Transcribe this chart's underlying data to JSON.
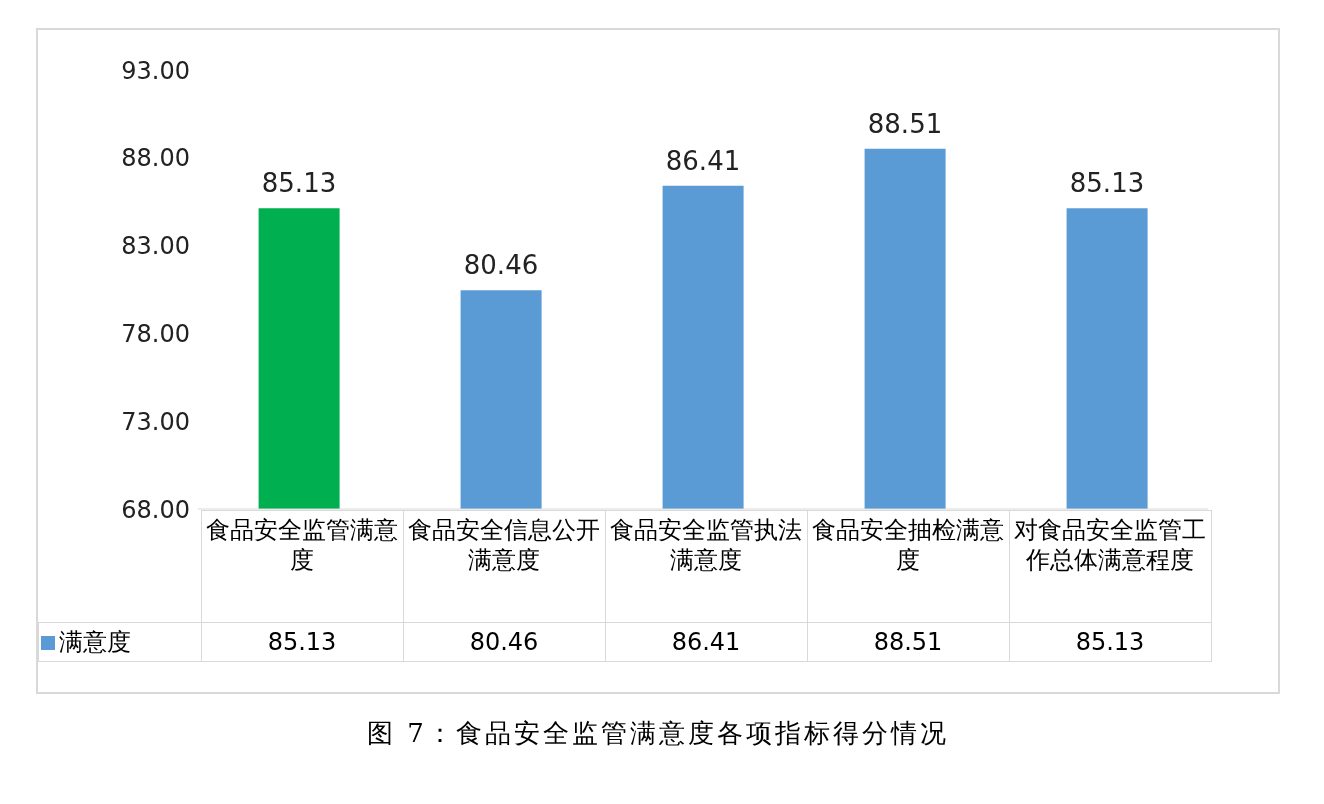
{
  "chart_data": {
    "type": "bar",
    "title": "图 7：食品安全监管满意度各项指标得分情况",
    "categories": [
      "食品安全监管满意度",
      "食品安全信息公开满意度",
      "食品安全监管执法满意度",
      "食品安全抽检满意度",
      "对食品安全监管工作总体满意程度"
    ],
    "series": [
      {
        "name": "满意度",
        "color": "#5b9bd5",
        "colors": [
          "#00b050",
          "#5b9bd5",
          "#5b9bd5",
          "#5b9bd5",
          "#5b9bd5"
        ],
        "values": [
          85.13,
          80.46,
          86.41,
          88.51,
          85.13
        ]
      }
    ],
    "ylim": [
      68,
      93
    ],
    "yticks": [
      {
        "value": 68,
        "label": "68.00"
      },
      {
        "value": 73,
        "label": "73.00"
      },
      {
        "value": 78,
        "label": "78.00"
      },
      {
        "value": 83,
        "label": "83.00"
      },
      {
        "value": 88,
        "label": "88.00"
      },
      {
        "value": 93,
        "label": "93.00"
      }
    ],
    "annotations": [
      {
        "text": "85.13",
        "x": "食品安全监管满意度",
        "y": 85.13
      },
      {
        "text": "80.46",
        "x": "食品安全信息公开满意度",
        "y": 80.46
      },
      {
        "text": "86.41",
        "x": "食品安全监管执法满意度",
        "y": 86.41
      },
      {
        "text": "88.51",
        "x": "食品安全抽检满意度",
        "y": 88.51
      },
      {
        "text": "85.13",
        "x": "对食品安全监管工作总体满意程度",
        "y": 85.13
      }
    ],
    "data_labels": true,
    "grid": false,
    "legend": "bottom left"
  }
}
